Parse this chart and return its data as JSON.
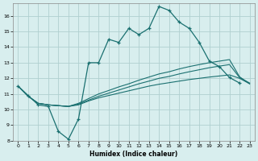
{
  "xlabel": "Humidex (Indice chaleur)",
  "bg_color": "#d8eeee",
  "grid_color": "#b0d0d0",
  "line_color": "#1a7070",
  "xlim": [
    -0.5,
    23.5
  ],
  "ylim": [
    8,
    16.8
  ],
  "yticks": [
    8,
    9,
    10,
    11,
    12,
    13,
    14,
    15,
    16
  ],
  "xticks": [
    0,
    1,
    2,
    3,
    4,
    5,
    6,
    7,
    8,
    9,
    10,
    11,
    12,
    13,
    14,
    15,
    16,
    17,
    18,
    19,
    20,
    21,
    22,
    23
  ],
  "line1_x": [
    0,
    1,
    2,
    3,
    4,
    5,
    6,
    7,
    8,
    9,
    10,
    11,
    12,
    13,
    14,
    15,
    16,
    17,
    18,
    19,
    20,
    21,
    22
  ],
  "line1_y": [
    11.5,
    10.9,
    10.3,
    10.2,
    8.6,
    8.1,
    9.4,
    13.0,
    13.0,
    14.5,
    14.3,
    15.2,
    14.8,
    15.2,
    16.6,
    16.35,
    15.6,
    15.2,
    14.3,
    13.1,
    12.75,
    12.05,
    11.7
  ],
  "line2_x": [
    0,
    1,
    2,
    3,
    4,
    5,
    6,
    7,
    8,
    9,
    10,
    11,
    12,
    13,
    14,
    15,
    16,
    17,
    18,
    19,
    20,
    21,
    22,
    23
  ],
  "line2_y": [
    11.5,
    10.85,
    10.4,
    10.3,
    10.25,
    10.2,
    10.3,
    10.55,
    10.75,
    10.9,
    11.05,
    11.2,
    11.35,
    11.5,
    11.62,
    11.72,
    11.82,
    11.92,
    12.0,
    12.08,
    12.15,
    12.22,
    12.0,
    11.65
  ],
  "line3_x": [
    0,
    1,
    2,
    3,
    4,
    5,
    6,
    7,
    8,
    9,
    10,
    11,
    12,
    13,
    14,
    15,
    16,
    17,
    18,
    19,
    20,
    21,
    22,
    23
  ],
  "line3_y": [
    11.5,
    10.85,
    10.4,
    10.3,
    10.25,
    10.2,
    10.35,
    10.6,
    10.85,
    11.05,
    11.25,
    11.45,
    11.65,
    11.82,
    12.0,
    12.12,
    12.28,
    12.42,
    12.55,
    12.68,
    12.78,
    12.88,
    12.05,
    11.7
  ],
  "line4_x": [
    0,
    1,
    2,
    3,
    4,
    5,
    6,
    7,
    8,
    9,
    10,
    11,
    12,
    13,
    14,
    15,
    16,
    17,
    18,
    19,
    20,
    21,
    22,
    23
  ],
  "line4_y": [
    11.5,
    10.85,
    10.4,
    10.3,
    10.25,
    10.2,
    10.4,
    10.7,
    11.0,
    11.22,
    11.45,
    11.65,
    11.88,
    12.08,
    12.28,
    12.42,
    12.6,
    12.75,
    12.88,
    13.0,
    13.1,
    13.2,
    12.1,
    11.65
  ]
}
